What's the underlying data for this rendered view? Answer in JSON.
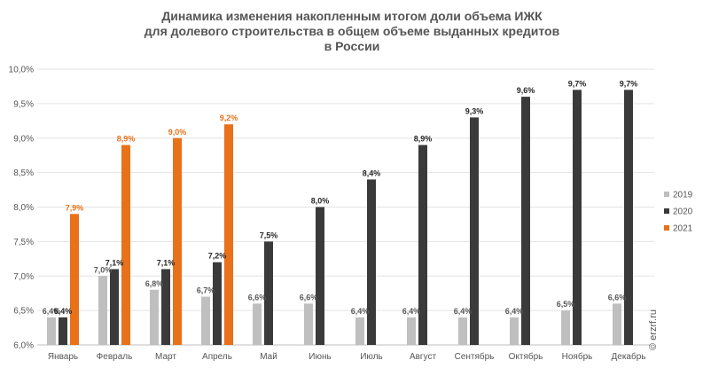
{
  "chart_data": {
    "type": "bar",
    "title_lines": [
      "Динамика изменения накопленным итогом доли объема ИЖК",
      "для долевого строительства  в общем объеме выданных кредитов",
      "в России"
    ],
    "categories": [
      "Январь",
      "Февраль",
      "Март",
      "Апрель",
      "Май",
      "Июнь",
      "Июль",
      "Август",
      "Сентябрь",
      "Октябрь",
      "Ноябрь",
      "Декабрь"
    ],
    "series": [
      {
        "name": "2019",
        "color": "#bfbfbf",
        "label_color": "#595959",
        "values": [
          6.4,
          7.0,
          6.8,
          6.7,
          6.6,
          6.6,
          6.4,
          6.4,
          6.4,
          6.4,
          6.5,
          6.6
        ],
        "labels": [
          "6,4%",
          "7,0%",
          "6,8%",
          "6,7%",
          "6,6%",
          "6,6%",
          "6,4%",
          "6,4%",
          "6,4%",
          "6,4%",
          "6,5%",
          "6,6%"
        ]
      },
      {
        "name": "2020",
        "color": "#3a3a3a",
        "label_color": "#262626",
        "values": [
          6.4,
          7.1,
          7.1,
          7.2,
          7.5,
          8.0,
          8.4,
          8.9,
          9.3,
          9.6,
          9.7,
          9.7
        ],
        "labels": [
          "6,4%",
          "7,1%",
          "7,1%",
          "7,2%",
          "7,5%",
          "8,0%",
          "8,4%",
          "8,9%",
          "9,3%",
          "9,6%",
          "9,7%",
          "9,7%"
        ]
      },
      {
        "name": "2021",
        "color": "#e8711a",
        "label_color": "#e8711a",
        "values": [
          7.9,
          8.9,
          9.0,
          9.2,
          null,
          null,
          null,
          null,
          null,
          null,
          null,
          null
        ],
        "labels": [
          "7,9%",
          "8,9%",
          "9,0%",
          "9,2%",
          "",
          "",
          "",
          "",
          "",
          "",
          "",
          ""
        ]
      }
    ],
    "ylim": [
      6.0,
      10.0
    ],
    "yticks": [
      {
        "value": 6.0,
        "label": "6,0%"
      },
      {
        "value": 6.5,
        "label": "6,5%"
      },
      {
        "value": 7.0,
        "label": "7,0%"
      },
      {
        "value": 7.5,
        "label": "7,5%"
      },
      {
        "value": 8.0,
        "label": "8,0%"
      },
      {
        "value": 8.5,
        "label": "8,5%"
      },
      {
        "value": 9.0,
        "label": "9,0%"
      },
      {
        "value": 9.5,
        "label": "9,5%"
      },
      {
        "value": 10.0,
        "label": "10,0%"
      }
    ],
    "grid": true,
    "legend_position": "right",
    "watermark": "© erzrf.ru"
  }
}
